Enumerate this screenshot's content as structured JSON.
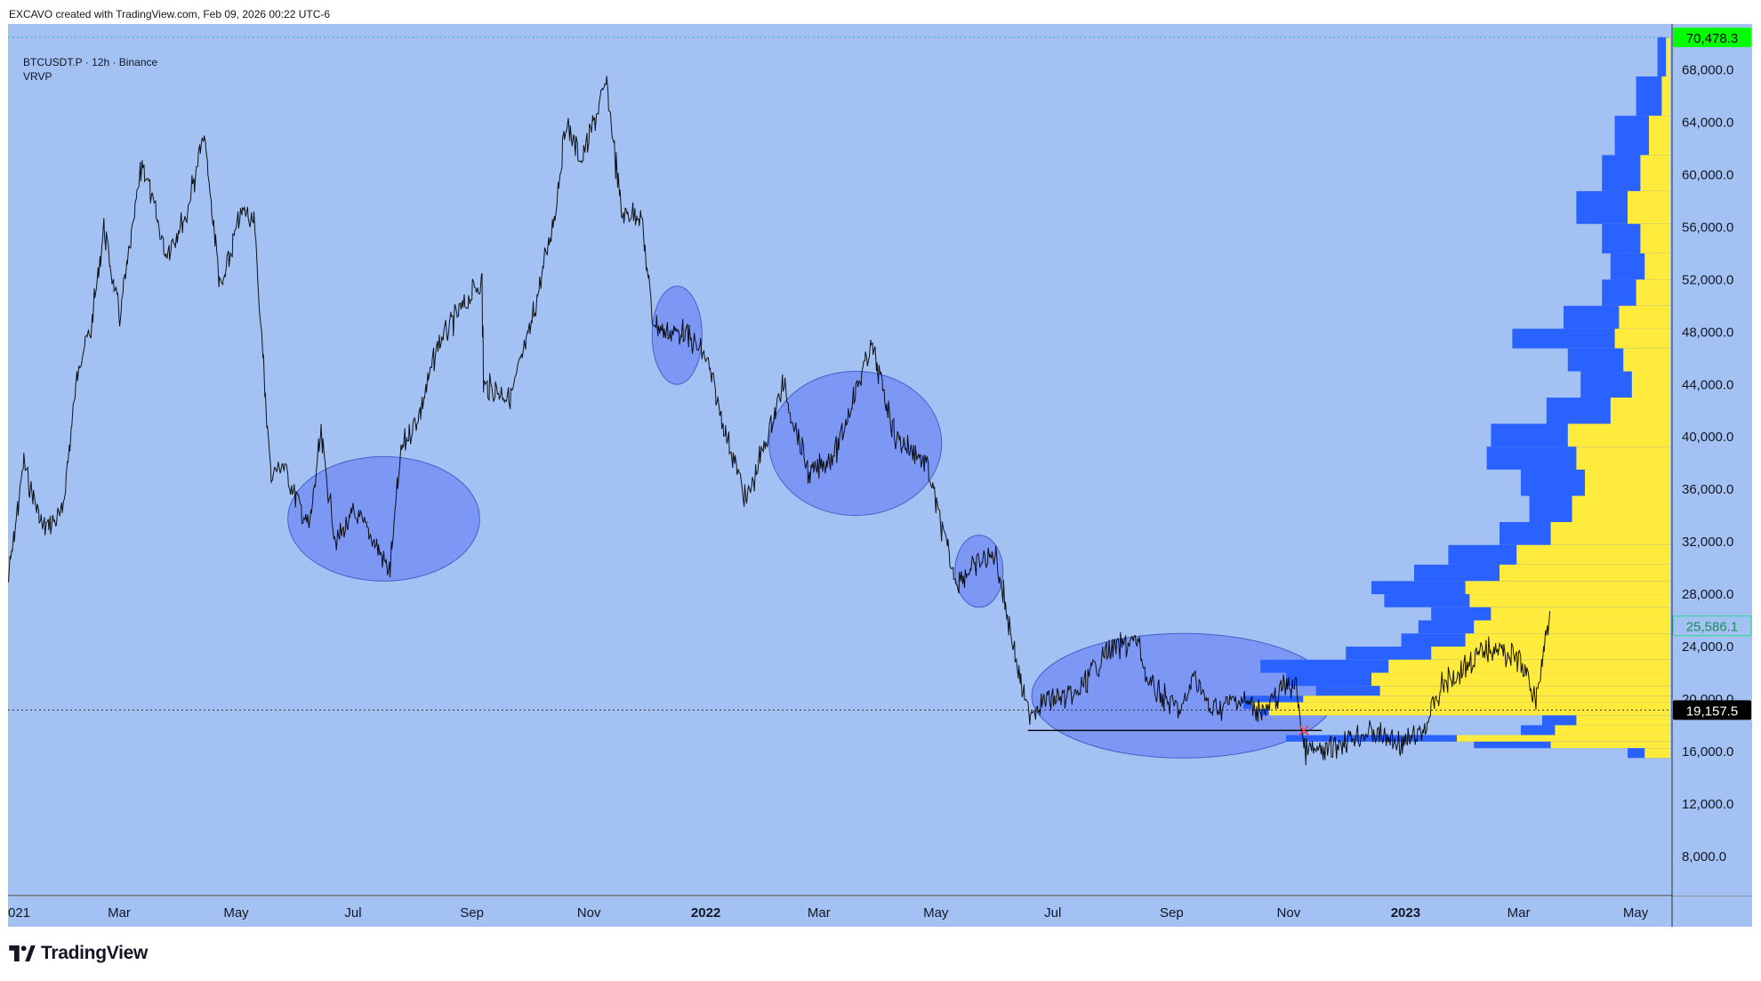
{
  "header": {
    "credit": "EXCAVO created with TradingView.com, Feb 09, 2026 00:22 UTC-6"
  },
  "legend": {
    "symbol": "BTCUSDT.P · 12h · Binance",
    "indicator": "VRVP"
  },
  "footer": {
    "brand": "TradingView"
  },
  "colors": {
    "background": "#a3c1f3",
    "candle": "#000000",
    "profile_blue": "#2962ff",
    "profile_yellow": "#ffeb3b",
    "ellipse_fill": "#7b96f5",
    "current_price_badge": "#00ff00",
    "last_price_badge": "#000000"
  },
  "price_badges": {
    "top": "70,478.3",
    "middle": "25,586.1",
    "bottom": "19,157.5"
  },
  "chart_data": {
    "type": "candlestick",
    "title": "BTCUSDT.P · 12h · Binance",
    "timeframe": "12h",
    "x_tick_labels": [
      "021",
      "Mar",
      "May",
      "Jul",
      "Sep",
      "Nov",
      "2022",
      "Mar",
      "May",
      "Jul",
      "Sep",
      "Nov",
      "2023",
      "Mar",
      "May"
    ],
    "bold_x_ticks": [
      "2022",
      "2023"
    ],
    "y_tick_labels": [
      "68,000.0",
      "64,000.0",
      "60,000.0",
      "56,000.0",
      "52,000.0",
      "48,000.0",
      "44,000.0",
      "40,000.0",
      "36,000.0",
      "32,000.0",
      "28,000.0",
      "24,000.0",
      "20,000.0",
      "16,000.0",
      "12,000.0",
      "8,000.0"
    ],
    "y_ticks": [
      68000,
      64000,
      60000,
      56000,
      52000,
      48000,
      44000,
      40000,
      36000,
      32000,
      28000,
      24000,
      20000,
      16000,
      12000,
      8000
    ],
    "ylim": [
      5000,
      71500
    ],
    "x_range": [
      "2021-01-02",
      "2023-05-20"
    ],
    "series": [
      {
        "x": [
          "2021-01-02",
          "2021-01-10",
          "2021-01-20",
          "2021-01-30",
          "2021-02-08",
          "2021-02-14",
          "2021-02-21",
          "2021-03-01",
          "2021-03-13",
          "2021-03-25",
          "2021-04-05",
          "2021-04-14",
          "2021-04-23",
          "2021-05-03",
          "2021-05-10",
          "2021-05-13",
          "2021-05-19",
          "2021-05-25",
          "2021-06-08",
          "2021-06-14",
          "2021-06-22",
          "2021-07-01",
          "2021-07-08",
          "2021-07-20",
          "2021-07-26",
          "2021-08-05",
          "2021-08-14",
          "2021-08-23",
          "2021-09-06",
          "2021-09-07",
          "2021-09-21",
          "2021-10-01",
          "2021-10-14",
          "2021-10-20",
          "2021-10-28",
          "2021-11-10",
          "2021-11-18",
          "2021-11-28",
          "2021-12-04",
          "2021-12-10",
          "2021-12-20",
          "2022-01-01",
          "2022-01-10",
          "2022-01-22",
          "2022-02-04",
          "2022-02-10",
          "2022-02-24",
          "2022-03-10",
          "2022-03-28",
          "2022-04-10",
          "2022-04-26",
          "2022-05-09",
          "2022-05-12",
          "2022-05-20",
          "2022-06-01",
          "2022-06-13",
          "2022-06-18",
          "2022-06-28",
          "2022-07-12",
          "2022-07-28",
          "2022-08-14",
          "2022-08-20",
          "2022-09-06",
          "2022-09-13",
          "2022-09-21",
          "2022-10-05",
          "2022-10-20",
          "2022-10-29",
          "2022-11-05",
          "2022-11-09",
          "2022-11-21",
          "2022-12-01",
          "2022-12-14",
          "2022-12-30",
          "2023-01-10",
          "2023-01-20",
          "2023-02-05",
          "2023-02-16",
          "2023-03-01",
          "2023-03-10",
          "2023-03-18"
        ],
        "values": [
          29000,
          38000,
          33000,
          34000,
          46000,
          48000,
          56000,
          49000,
          61000,
          54000,
          57000,
          63000,
          51000,
          57000,
          57000,
          50000,
          37000,
          38000,
          33000,
          40000,
          32000,
          34000,
          33000,
          29800,
          39000,
          42000,
          47000,
          49000,
          52000,
          44000,
          43000,
          48000,
          57000,
          64000,
          61000,
          67000,
          57000,
          57000,
          49000,
          48000,
          48000,
          46000,
          41000,
          35000,
          41000,
          44000,
          37000,
          39000,
          47000,
          40000,
          38000,
          30000,
          29000,
          30000,
          31000,
          22000,
          19000,
          20000,
          20000,
          23500,
          24500,
          21000,
          19000,
          22000,
          19000,
          20000,
          19000,
          21000,
          21000,
          16000,
          16000,
          17000,
          17500,
          16500,
          17500,
          21000,
          23000,
          24000,
          23000,
          20000,
          27500
        ],
        "name": "BTCUSDT.P"
      }
    ],
    "highlight_ellipses_price_ranges": [
      {
        "from": "2021-05-28",
        "to": "2021-09-05",
        "low": 29000,
        "high": 38500
      },
      {
        "from": "2021-12-04",
        "to": "2021-12-30",
        "low": 44000,
        "high": 51500
      },
      {
        "from": "2022-02-03",
        "to": "2022-05-04",
        "low": 34000,
        "high": 45000
      },
      {
        "from": "2022-05-11",
        "to": "2022-06-05",
        "low": 27000,
        "high": 32500
      },
      {
        "from": "2022-06-20",
        "to": "2022-11-25",
        "low": 15500,
        "high": 25000
      }
    ],
    "support_line": {
      "from": "2022-06-18",
      "to": "2022-11-09",
      "price": 17600
    },
    "horizontal_dotted_lines": [
      70478.3,
      19157.5
    ],
    "volume_profile": {
      "name": "VRVP",
      "rows": [
        {
          "price": 69000,
          "total": 0.03,
          "yellow": 0.01
        },
        {
          "price": 66000,
          "total": 0.08,
          "yellow": 0.02
        },
        {
          "price": 63000,
          "total": 0.13,
          "yellow": 0.05
        },
        {
          "price": 60000,
          "total": 0.16,
          "yellow": 0.07
        },
        {
          "price": 57500,
          "total": 0.22,
          "yellow": 0.1
        },
        {
          "price": 55000,
          "total": 0.16,
          "yellow": 0.07
        },
        {
          "price": 53000,
          "total": 0.14,
          "yellow": 0.06
        },
        {
          "price": 51000,
          "total": 0.16,
          "yellow": 0.08
        },
        {
          "price": 49000,
          "total": 0.25,
          "yellow": 0.12
        },
        {
          "price": 47500,
          "total": 0.37,
          "yellow": 0.13
        },
        {
          "price": 46000,
          "total": 0.24,
          "yellow": 0.11
        },
        {
          "price": 44000,
          "total": 0.21,
          "yellow": 0.09
        },
        {
          "price": 42000,
          "total": 0.29,
          "yellow": 0.14
        },
        {
          "price": 40000,
          "total": 0.42,
          "yellow": 0.24
        },
        {
          "price": 38500,
          "total": 0.43,
          "yellow": 0.22
        },
        {
          "price": 36500,
          "total": 0.35,
          "yellow": 0.2
        },
        {
          "price": 34500,
          "total": 0.33,
          "yellow": 0.23
        },
        {
          "price": 32500,
          "total": 0.4,
          "yellow": 0.28
        },
        {
          "price": 31000,
          "total": 0.52,
          "yellow": 0.36
        },
        {
          "price": 29500,
          "total": 0.6,
          "yellow": 0.4
        },
        {
          "price": 28500,
          "total": 0.7,
          "yellow": 0.48
        },
        {
          "price": 27500,
          "total": 0.67,
          "yellow": 0.47
        },
        {
          "price": 26500,
          "total": 0.56,
          "yellow": 0.42
        },
        {
          "price": 25500,
          "total": 0.59,
          "yellow": 0.46
        },
        {
          "price": 24500,
          "total": 0.63,
          "yellow": 0.48
        },
        {
          "price": 23500,
          "total": 0.76,
          "yellow": 0.56
        },
        {
          "price": 22500,
          "total": 0.96,
          "yellow": 0.66
        },
        {
          "price": 21500,
          "total": 0.9,
          "yellow": 0.7
        },
        {
          "price": 20500,
          "total": 0.83,
          "yellow": 0.68
        },
        {
          "price": 20000,
          "total": 1.0,
          "yellow": 0.86
        },
        {
          "price": 19500,
          "total": 1.0,
          "yellow": 0.98
        },
        {
          "price": 19000,
          "total": 0.96,
          "yellow": 0.94
        },
        {
          "price": 18500,
          "total": 0.3,
          "yellow": 0.22
        },
        {
          "price": 17500,
          "total": 0.35,
          "yellow": 0.27
        },
        {
          "price": 17000,
          "total": 0.9,
          "yellow": 0.5
        },
        {
          "price": 16500,
          "total": 0.46,
          "yellow": 0.28
        },
        {
          "price": 16000,
          "total": 0.1,
          "yellow": 0.06
        }
      ]
    }
  }
}
